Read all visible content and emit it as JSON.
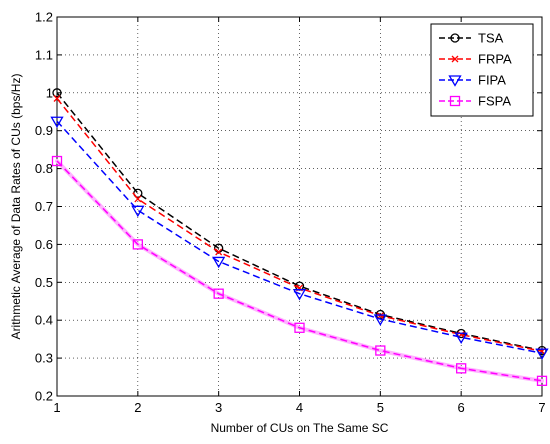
{
  "chart_data": {
    "type": "line",
    "title": "",
    "xlabel": "Number of CUs on The Same SC",
    "ylabel": "Arithmetic Average of Data Rates of CUs (bps/Hz)",
    "x": [
      1,
      2,
      3,
      4,
      5,
      6,
      7
    ],
    "xlim": [
      1,
      7
    ],
    "ylim": [
      0.2,
      1.2
    ],
    "xticks": [
      "1",
      "2",
      "3",
      "4",
      "5",
      "6",
      "7"
    ],
    "yticks": [
      "0.2",
      "0.3",
      "0.4",
      "0.5",
      "0.6",
      "0.7",
      "0.8",
      "0.9",
      "1",
      "1.1",
      "1.2"
    ],
    "grid": true,
    "legend_position": "top-right",
    "series": [
      {
        "name": "TSA",
        "color": "#000000",
        "marker": "circle",
        "values": [
          1.0,
          0.735,
          0.59,
          0.49,
          0.415,
          0.365,
          0.32
        ]
      },
      {
        "name": "FRPA",
        "color": "#ff0000",
        "marker": "x",
        "values": [
          0.985,
          0.72,
          0.58,
          0.485,
          0.412,
          0.362,
          0.318
        ]
      },
      {
        "name": "FIPA",
        "color": "#0000ff",
        "marker": "triangle-down",
        "values": [
          0.925,
          0.69,
          0.555,
          0.47,
          0.403,
          0.355,
          0.313
        ]
      },
      {
        "name": "FSPA",
        "color": "#ff00ff",
        "marker": "square",
        "values": [
          0.82,
          0.6,
          0.47,
          0.38,
          0.32,
          0.273,
          0.24
        ]
      }
    ]
  }
}
